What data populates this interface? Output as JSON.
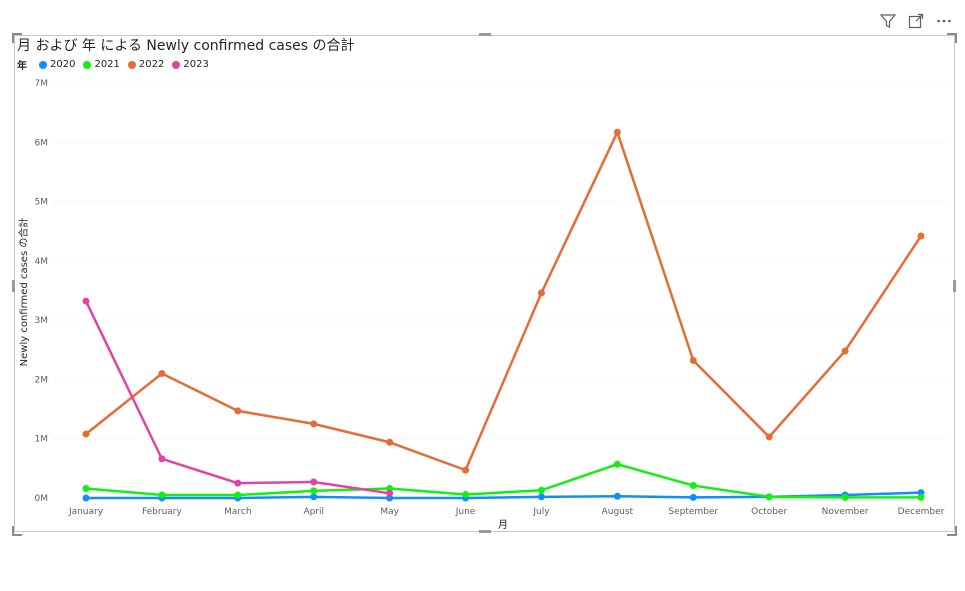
{
  "title": "月 および 年 による Newly confirmed cases の合計",
  "icons": [
    "filter-icon",
    "focus-mode-icon",
    "more-options-icon"
  ],
  "legend": {
    "title": "年",
    "items": [
      {
        "label": "2020",
        "color": "#118DFF"
      },
      {
        "label": "2021",
        "color": "#12EF12"
      },
      {
        "label": "2022",
        "color": "#E66C37"
      },
      {
        "label": "2023",
        "color": "#E044A7"
      }
    ]
  },
  "chart_data": {
    "type": "line",
    "categories": [
      "January",
      "February",
      "March",
      "April",
      "May",
      "June",
      "July",
      "August",
      "September",
      "October",
      "November",
      "December"
    ],
    "xlabel": "月",
    "ylabel": "Newly confirmed cases の合計",
    "ylim": [
      0,
      7000000
    ],
    "yticks": [
      "0M",
      "1M",
      "2M",
      "3M",
      "4M",
      "5M",
      "6M",
      "7M"
    ],
    "grid": true,
    "series": [
      {
        "name": "2020",
        "color": "#118DFF",
        "values": [
          0,
          0,
          0,
          20000,
          0,
          0,
          20000,
          30000,
          10000,
          20000,
          50000,
          90000
        ]
      },
      {
        "name": "2021",
        "color": "#12EF12",
        "values": [
          160000,
          50000,
          50000,
          120000,
          160000,
          60000,
          130000,
          570000,
          210000,
          20000,
          10000,
          10000
        ]
      },
      {
        "name": "2022",
        "color": "#E66C37",
        "values": [
          1080000,
          2100000,
          1470000,
          1250000,
          940000,
          470000,
          3460000,
          6170000,
          2320000,
          1030000,
          2480000,
          4420000
        ]
      },
      {
        "name": "2023",
        "color": "#E044A7",
        "values": [
          3320000,
          660000,
          250000,
          270000,
          80000,
          null,
          null,
          null,
          null,
          null,
          null,
          null
        ]
      }
    ]
  }
}
